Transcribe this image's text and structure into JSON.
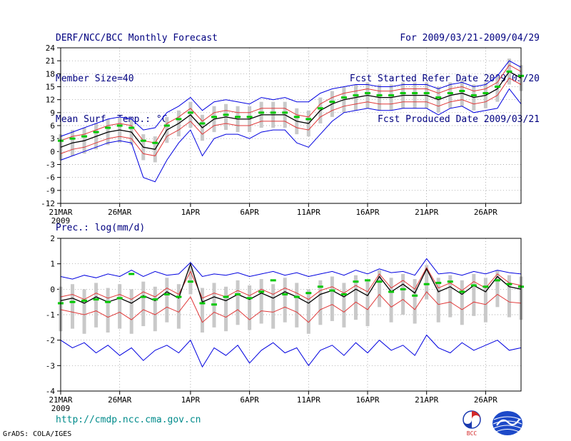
{
  "header": {
    "title": "DERF/NCC/BCC Monthly Forecast",
    "member_size": "Member Size=40",
    "for_range": "For 2009/03/21-2009/04/29",
    "fcst_started": "Fcst Started Refer Date 2009/03/20",
    "fcst_produced": "Fcst Produced Date 2009/03/21"
  },
  "footer": {
    "url": "http://cmdp.ncc.cma.gov.cn",
    "grads_credit": "GrADS: COLA/IGES",
    "bcc_label": "BCC"
  },
  "colors": {
    "header_text": "#000080",
    "envelope_blue": "#0000e0",
    "std_red": "#e03838",
    "mean_black": "#000000",
    "obs_green": "#00c800",
    "spread_gray": "#c9c9c9",
    "url_teal": "#008b8b"
  },
  "chart_data": [
    {
      "type": "line",
      "title": "Mean Surf. Temp.: °C",
      "xlabel": "",
      "ylabel": "",
      "ylim": [
        -12,
        24
      ],
      "yticks": [
        24,
        21,
        18,
        15,
        12,
        9,
        6,
        3,
        0,
        -3,
        -6,
        -9,
        -12
      ],
      "grid": "dotted",
      "x_count": 40,
      "x_year": "2009",
      "xticks": [
        {
          "index": 0,
          "label": "21MAR"
        },
        {
          "index": 5,
          "label": "26MAR"
        },
        {
          "index": 11,
          "label": "1APR"
        },
        {
          "index": 16,
          "label": "6APR"
        },
        {
          "index": 21,
          "label": "11APR"
        },
        {
          "index": 26,
          "label": "16APR"
        },
        {
          "index": 31,
          "label": "21APR"
        },
        {
          "index": 36,
          "label": "26APR"
        }
      ],
      "series": [
        {
          "name": "ensemble-max",
          "color": "#0000e0",
          "style": "line",
          "width": 1,
          "values": [
            3.5,
            4.5,
            5.5,
            6.5,
            7.5,
            8.0,
            7.5,
            5.0,
            5.5,
            9.0,
            10.5,
            12.5,
            9.5,
            11.5,
            12.0,
            11.5,
            11.0,
            12.5,
            12.0,
            12.5,
            11.5,
            11.5,
            13.5,
            14.5,
            15.0,
            15.5,
            15.5,
            15.0,
            15.0,
            15.5,
            15.5,
            15.5,
            14.5,
            15.5,
            16.0,
            15.0,
            15.5,
            17.5,
            21.0,
            19.5
          ]
        },
        {
          "name": "ensemble-min",
          "color": "#0000e0",
          "style": "line",
          "width": 1,
          "values": [
            -2.0,
            -1.0,
            0.0,
            1.0,
            2.0,
            2.5,
            2.0,
            -6.0,
            -7.0,
            -2.0,
            2.0,
            5.0,
            -1.0,
            3.0,
            4.0,
            4.0,
            3.0,
            4.5,
            5.0,
            5.0,
            2.0,
            1.0,
            4.0,
            7.0,
            9.0,
            9.5,
            10.0,
            9.5,
            9.5,
            10.0,
            10.0,
            10.0,
            8.5,
            10.0,
            10.5,
            9.0,
            9.5,
            10.0,
            14.5,
            11.0
          ]
        },
        {
          "name": "plus-std",
          "color": "#e03838",
          "style": "line",
          "width": 1,
          "values": [
            2.5,
            3.5,
            4.0,
            5.0,
            6.0,
            6.5,
            6.0,
            2.5,
            2.0,
            6.5,
            8.0,
            10.0,
            7.0,
            9.0,
            9.5,
            9.0,
            9.0,
            10.0,
            10.0,
            10.0,
            8.5,
            8.0,
            11.0,
            12.5,
            13.5,
            14.0,
            14.5,
            14.0,
            14.0,
            14.5,
            14.5,
            14.5,
            13.5,
            14.5,
            15.0,
            14.0,
            14.5,
            16.0,
            20.0,
            18.5
          ]
        },
        {
          "name": "minus-std",
          "color": "#e03838",
          "style": "line",
          "width": 1,
          "values": [
            -0.5,
            0.5,
            1.0,
            2.0,
            3.0,
            3.5,
            3.0,
            -0.5,
            -1.0,
            3.5,
            5.0,
            7.0,
            4.0,
            6.0,
            6.5,
            6.0,
            6.0,
            7.0,
            7.0,
            7.0,
            5.5,
            5.0,
            8.0,
            9.5,
            10.5,
            11.0,
            11.5,
            11.0,
            11.0,
            11.5,
            11.5,
            11.5,
            10.5,
            11.5,
            12.0,
            11.0,
            11.5,
            13.0,
            17.0,
            15.5
          ]
        },
        {
          "name": "ensemble-mean",
          "color": "#000000",
          "style": "line",
          "width": 1.3,
          "values": [
            1.0,
            2.0,
            2.5,
            3.5,
            4.5,
            5.0,
            4.5,
            1.0,
            0.5,
            5.0,
            6.5,
            8.5,
            5.5,
            7.5,
            8.0,
            7.5,
            7.5,
            8.5,
            8.5,
            8.5,
            7.0,
            6.5,
            9.5,
            11.0,
            12.0,
            12.5,
            13.0,
            12.5,
            12.5,
            13.0,
            13.0,
            13.0,
            12.0,
            13.0,
            13.5,
            12.5,
            13.0,
            14.5,
            18.5,
            17.0
          ]
        },
        {
          "name": "observation-markers",
          "color": "#00c800",
          "style": "dash",
          "values": [
            2.5,
            3.0,
            3.5,
            4.5,
            5.5,
            6.0,
            5.5,
            2.5,
            2.0,
            6.0,
            7.5,
            9.0,
            6.5,
            8.0,
            8.5,
            8.0,
            8.0,
            9.0,
            9.0,
            9.0,
            8.0,
            7.5,
            10.0,
            11.5,
            12.5,
            13.0,
            13.5,
            13.0,
            13.0,
            13.5,
            13.5,
            13.5,
            12.5,
            13.5,
            14.0,
            13.0,
            13.5,
            15.0,
            18.5,
            17.5
          ]
        }
      ],
      "bars": {
        "name": "ensemble-spread",
        "color": "#c9c9c9",
        "lo": [
          -2.0,
          -1.0,
          -0.5,
          0.5,
          1.5,
          2.0,
          1.5,
          -2.0,
          -2.5,
          2.0,
          3.5,
          5.5,
          2.5,
          4.5,
          5.0,
          4.5,
          4.5,
          5.5,
          5.5,
          5.5,
          4.0,
          3.5,
          6.5,
          8.0,
          9.0,
          9.5,
          10.0,
          9.5,
          9.5,
          10.0,
          10.0,
          10.0,
          9.0,
          10.0,
          10.5,
          9.5,
          10.0,
          11.5,
          15.5,
          14.0
        ],
        "hi": [
          4.0,
          5.0,
          5.5,
          6.5,
          7.5,
          8.0,
          7.5,
          4.0,
          3.5,
          8.0,
          9.5,
          11.5,
          8.5,
          10.5,
          11.0,
          10.5,
          10.5,
          11.5,
          11.5,
          11.5,
          10.0,
          9.5,
          12.5,
          14.0,
          15.0,
          15.5,
          16.0,
          15.5,
          15.5,
          16.0,
          16.0,
          16.0,
          15.0,
          16.0,
          16.5,
          15.5,
          16.0,
          17.5,
          21.5,
          20.0
        ]
      }
    },
    {
      "type": "line",
      "title": "Prec.: log(mm/d)",
      "xlabel": "",
      "ylabel": "",
      "ylim": [
        -4,
        2
      ],
      "yticks": [
        2,
        1,
        0,
        -1,
        -2,
        -3,
        -4
      ],
      "grid": "dotted",
      "x_count": 40,
      "x_year": "2009",
      "xticks": [
        {
          "index": 0,
          "label": "21MAR"
        },
        {
          "index": 5,
          "label": "26MAR"
        },
        {
          "index": 11,
          "label": "1APR"
        },
        {
          "index": 16,
          "label": "6APR"
        },
        {
          "index": 21,
          "label": "11APR"
        },
        {
          "index": 26,
          "label": "16APR"
        },
        {
          "index": 31,
          "label": "21APR"
        },
        {
          "index": 36,
          "label": "26APR"
        }
      ],
      "series": [
        {
          "name": "ensemble-max",
          "color": "#0000e0",
          "style": "line",
          "width": 1,
          "values": [
            0.5,
            0.4,
            0.55,
            0.45,
            0.6,
            0.5,
            0.75,
            0.5,
            0.7,
            0.55,
            0.6,
            1.05,
            0.5,
            0.6,
            0.55,
            0.65,
            0.5,
            0.6,
            0.7,
            0.55,
            0.65,
            0.5,
            0.6,
            0.7,
            0.55,
            0.75,
            0.6,
            0.8,
            0.65,
            0.7,
            0.55,
            1.2,
            0.6,
            0.65,
            0.55,
            0.7,
            0.6,
            0.75,
            0.65,
            0.6
          ]
        },
        {
          "name": "ensemble-min",
          "color": "#0000e0",
          "style": "line",
          "width": 1,
          "values": [
            -2.0,
            -2.3,
            -2.1,
            -2.5,
            -2.2,
            -2.6,
            -2.3,
            -2.8,
            -2.4,
            -2.2,
            -2.5,
            -2.0,
            -3.05,
            -2.3,
            -2.6,
            -2.2,
            -2.9,
            -2.4,
            -2.1,
            -2.5,
            -2.3,
            -3.0,
            -2.4,
            -2.2,
            -2.6,
            -2.1,
            -2.5,
            -2.0,
            -2.4,
            -2.2,
            -2.6,
            -1.8,
            -2.3,
            -2.5,
            -2.1,
            -2.4,
            -2.2,
            -2.0,
            -2.4,
            -2.3
          ]
        },
        {
          "name": "plus-std",
          "color": "#e03838",
          "style": "line",
          "width": 1,
          "values": [
            -0.3,
            -0.2,
            -0.4,
            -0.15,
            -0.35,
            -0.2,
            -0.4,
            -0.1,
            -0.3,
            0.05,
            -0.2,
            0.7,
            -0.35,
            -0.15,
            -0.3,
            -0.05,
            -0.25,
            0.0,
            -0.2,
            0.05,
            -0.15,
            -0.4,
            -0.05,
            0.1,
            -0.15,
            0.15,
            -0.1,
            0.6,
            0.05,
            0.35,
            0.0,
            0.85,
            0.05,
            0.25,
            -0.05,
            0.3,
            0.05,
            0.6,
            0.25,
            0.15
          ]
        },
        {
          "name": "minus-std",
          "color": "#e03838",
          "style": "line",
          "width": 1,
          "values": [
            -0.8,
            -0.9,
            -1.0,
            -0.85,
            -1.1,
            -0.9,
            -1.2,
            -0.8,
            -1.0,
            -0.7,
            -0.9,
            -0.3,
            -1.3,
            -0.9,
            -1.1,
            -0.8,
            -1.2,
            -0.85,
            -0.9,
            -0.7,
            -0.9,
            -1.3,
            -0.8,
            -0.6,
            -0.9,
            -0.5,
            -0.8,
            -0.2,
            -0.7,
            -0.4,
            -0.8,
            -0.1,
            -0.6,
            -0.5,
            -0.8,
            -0.5,
            -0.6,
            -0.2,
            -0.5,
            -0.55
          ]
        },
        {
          "name": "ensemble-mean",
          "color": "#000000",
          "style": "line",
          "width": 1.3,
          "values": [
            -0.45,
            -0.35,
            -0.55,
            -0.3,
            -0.5,
            -0.35,
            -0.55,
            -0.25,
            -0.45,
            -0.1,
            -0.35,
            1.0,
            -0.5,
            -0.3,
            -0.45,
            -0.2,
            -0.4,
            -0.15,
            -0.35,
            -0.1,
            -0.3,
            -0.55,
            -0.2,
            -0.05,
            -0.3,
            0.0,
            -0.25,
            0.5,
            -0.1,
            0.2,
            -0.15,
            0.8,
            -0.1,
            0.1,
            -0.2,
            0.15,
            -0.1,
            0.5,
            0.1,
            0.0
          ]
        },
        {
          "name": "observation-markers",
          "color": "#00c800",
          "style": "dash",
          "values": [
            -0.55,
            -0.5,
            -0.45,
            -0.4,
            -0.5,
            -0.35,
            0.6,
            -0.3,
            -0.4,
            -0.2,
            -0.3,
            0.3,
            -0.55,
            -0.6,
            -0.3,
            -0.2,
            -0.35,
            -0.1,
            0.35,
            -0.2,
            -0.3,
            -0.15,
            0.1,
            -0.05,
            -0.2,
            0.3,
            0.35,
            0.3,
            -0.1,
            0.0,
            -0.25,
            0.2,
            0.25,
            0.3,
            -0.1,
            0.15,
            0.1,
            0.35,
            0.2,
            0.1
          ]
        }
      ],
      "bars": {
        "name": "ensemble-spread",
        "color": "#c9c9c9",
        "lo": [
          -1.65,
          -1.55,
          -1.75,
          -1.5,
          -1.7,
          -1.55,
          -1.75,
          -1.45,
          -1.65,
          -1.3,
          -1.55,
          -0.2,
          -1.7,
          -1.5,
          -1.65,
          -1.4,
          -1.6,
          -1.35,
          -1.55,
          -1.3,
          -1.5,
          -1.75,
          -1.4,
          -1.25,
          -1.5,
          -1.2,
          -1.45,
          -0.7,
          -1.3,
          -1.0,
          -1.35,
          -0.4,
          -1.3,
          -1.1,
          -1.4,
          -1.05,
          -1.3,
          -0.7,
          -1.1,
          -1.2
        ],
        "hi": [
          0.1,
          0.2,
          0.0,
          0.25,
          0.05,
          0.2,
          0.0,
          0.3,
          0.1,
          0.45,
          0.2,
          0.9,
          0.05,
          0.25,
          0.1,
          0.35,
          0.15,
          0.4,
          0.2,
          0.45,
          0.25,
          0.0,
          0.35,
          0.5,
          0.25,
          0.55,
          0.3,
          0.75,
          0.45,
          0.6,
          0.4,
          0.95,
          0.45,
          0.55,
          0.35,
          0.6,
          0.45,
          0.75,
          0.55,
          0.5
        ]
      }
    }
  ]
}
